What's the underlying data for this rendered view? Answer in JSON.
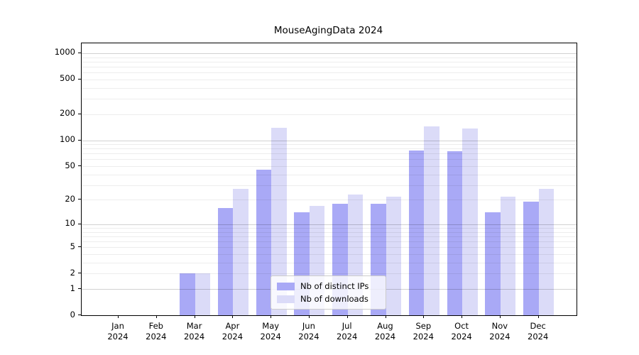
{
  "title": "MouseAgingData 2024",
  "chart_data": {
    "type": "bar",
    "title": "MouseAgingData 2024",
    "months": [
      "Jan",
      "Feb",
      "Mar",
      "Apr",
      "May",
      "Jun",
      "Jul",
      "Aug",
      "Sep",
      "Oct",
      "Nov",
      "Dec"
    ],
    "year": "2024",
    "series": [
      {
        "name": "Nb of distinct IPs",
        "color": "#a9a9f6",
        "values": [
          0,
          0,
          2,
          16,
          45,
          14,
          18,
          18,
          76,
          74,
          14,
          19
        ]
      },
      {
        "name": "Nb of downloads",
        "color": "#dbdbf8",
        "values": [
          0,
          0,
          2,
          27,
          140,
          17,
          23,
          22,
          145,
          136,
          22,
          27
        ]
      }
    ],
    "yscale": "log1p",
    "ylim": [
      0,
      1300
    ],
    "yticks": [
      0,
      1,
      2,
      5,
      10,
      20,
      50,
      100,
      200,
      500,
      1000
    ],
    "grid": "both",
    "grid_major_decades": [
      1,
      10,
      100,
      1000
    ],
    "legend": {
      "labels": [
        "Nb of distinct IPs",
        "Nb of downloads"
      ],
      "position": "lower center"
    }
  }
}
